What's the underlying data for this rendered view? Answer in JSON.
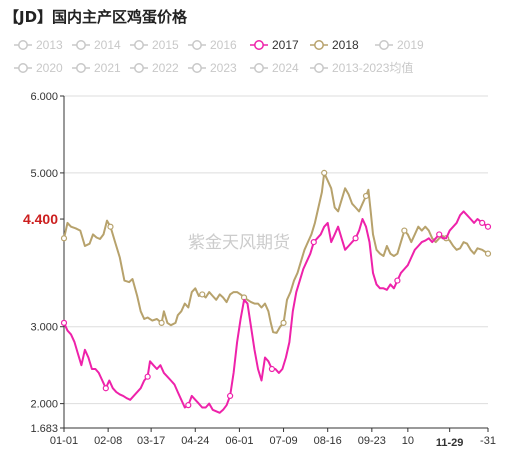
{
  "title": "【JD】国内主产区鸡蛋价格",
  "watermark": "紫金天风期货",
  "colors": {
    "active_2017": "#ee22aa",
    "active_2018": "#b7a26c",
    "inactive": "#c8c8c8",
    "highlight": "#cc1f1f",
    "grid": "#dddddd",
    "axis": "#333333"
  },
  "legend": {
    "items": [
      {
        "label": "2013",
        "color": "#c8c8c8",
        "active": false
      },
      {
        "label": "2014",
        "color": "#c8c8c8",
        "active": false
      },
      {
        "label": "2015",
        "color": "#c8c8c8",
        "active": false
      },
      {
        "label": "2016",
        "color": "#c8c8c8",
        "active": false
      },
      {
        "label": "2017",
        "color": "#ee22aa",
        "active": true
      },
      {
        "label": "2018",
        "color": "#b7a26c",
        "active": true
      },
      {
        "label": "2019",
        "color": "#c8c8c8",
        "active": false
      },
      {
        "label": "2020",
        "color": "#c8c8c8",
        "active": false
      },
      {
        "label": "2021",
        "color": "#c8c8c8",
        "active": false
      },
      {
        "label": "2022",
        "color": "#c8c8c8",
        "active": false
      },
      {
        "label": "2023",
        "color": "#c8c8c8",
        "active": false
      },
      {
        "label": "2024",
        "color": "#c8c8c8",
        "active": false
      },
      {
        "label": "2013-2023均值",
        "color": "#c8c8c8",
        "active": false
      }
    ]
  },
  "chart_data": {
    "type": "line",
    "ylim": [
      1.683,
      6.0
    ],
    "y_ticks": [
      {
        "value": 6.0,
        "label": "6.000"
      },
      {
        "value": 5.0,
        "label": "5.000"
      },
      {
        "value": 3.0,
        "label": "3.000"
      },
      {
        "value": 2.0,
        "label": "2.000"
      },
      {
        "value": 1.683,
        "label": "1.683"
      }
    ],
    "y_highlight": {
      "value": 4.4,
      "label": "4.400"
    },
    "xlim": [
      0,
      365
    ],
    "x_ticks": [
      {
        "day": 0,
        "label": "01-01"
      },
      {
        "day": 38,
        "label": "02-08"
      },
      {
        "day": 75,
        "label": "03-17"
      },
      {
        "day": 113,
        "label": "04-24"
      },
      {
        "day": 151,
        "label": "06-01"
      },
      {
        "day": 189,
        "label": "07-09"
      },
      {
        "day": 227,
        "label": "08-16"
      },
      {
        "day": 265,
        "label": "09-23"
      },
      {
        "day": 296,
        "label": "10"
      },
      {
        "day": 332,
        "label": "11-29",
        "highlight": true
      },
      {
        "day": 365,
        "label": "-31"
      }
    ],
    "series": [
      {
        "name": "2018",
        "color": "#b7a26c",
        "points": [
          [
            0,
            4.15
          ],
          [
            3,
            4.35
          ],
          [
            6,
            4.3
          ],
          [
            10,
            4.28
          ],
          [
            14,
            4.25
          ],
          [
            18,
            4.05
          ],
          [
            22,
            4.08
          ],
          [
            25,
            4.2
          ],
          [
            28,
            4.16
          ],
          [
            31,
            4.14
          ],
          [
            34,
            4.2
          ],
          [
            37,
            4.38
          ],
          [
            40,
            4.3
          ],
          [
            44,
            4.1
          ],
          [
            48,
            3.9
          ],
          [
            52,
            3.6
          ],
          [
            56,
            3.58
          ],
          [
            59,
            3.62
          ],
          [
            63,
            3.4
          ],
          [
            66,
            3.2
          ],
          [
            69,
            3.1
          ],
          [
            72,
            3.12
          ],
          [
            76,
            3.08
          ],
          [
            80,
            3.1
          ],
          [
            84,
            3.05
          ],
          [
            86,
            3.2
          ],
          [
            89,
            3.05
          ],
          [
            92,
            3.02
          ],
          [
            96,
            3.05
          ],
          [
            98,
            3.15
          ],
          [
            101,
            3.2
          ],
          [
            104,
            3.3
          ],
          [
            107,
            3.25
          ],
          [
            110,
            3.45
          ],
          [
            113,
            3.5
          ],
          [
            116,
            3.4
          ],
          [
            119,
            3.42
          ],
          [
            122,
            3.38
          ],
          [
            125,
            3.45
          ],
          [
            128,
            3.4
          ],
          [
            131,
            3.35
          ],
          [
            134,
            3.42
          ],
          [
            137,
            3.38
          ],
          [
            140,
            3.32
          ],
          [
            143,
            3.42
          ],
          [
            146,
            3.45
          ],
          [
            149,
            3.45
          ],
          [
            152,
            3.42
          ],
          [
            155,
            3.38
          ],
          [
            158,
            3.35
          ],
          [
            161,
            3.32
          ],
          [
            164,
            3.3
          ],
          [
            167,
            3.3
          ],
          [
            170,
            3.25
          ],
          [
            173,
            3.3
          ],
          [
            176,
            3.2
          ],
          [
            178,
            3.05
          ],
          [
            180,
            2.93
          ],
          [
            183,
            2.92
          ],
          [
            186,
            3.0
          ],
          [
            189,
            3.05
          ],
          [
            192,
            3.35
          ],
          [
            195,
            3.45
          ],
          [
            198,
            3.6
          ],
          [
            201,
            3.7
          ],
          [
            204,
            3.85
          ],
          [
            207,
            4.0
          ],
          [
            210,
            4.1
          ],
          [
            213,
            4.2
          ],
          [
            216,
            4.35
          ],
          [
            219,
            4.55
          ],
          [
            222,
            4.75
          ],
          [
            224,
            5.0
          ],
          [
            227,
            4.9
          ],
          [
            230,
            4.8
          ],
          [
            233,
            4.55
          ],
          [
            236,
            4.5
          ],
          [
            239,
            4.65
          ],
          [
            242,
            4.8
          ],
          [
            245,
            4.72
          ],
          [
            248,
            4.6
          ],
          [
            251,
            4.55
          ],
          [
            254,
            4.5
          ],
          [
            257,
            4.6
          ],
          [
            260,
            4.7
          ],
          [
            262,
            4.78
          ],
          [
            264,
            4.5
          ],
          [
            266,
            4.2
          ],
          [
            269,
            4.0
          ],
          [
            272,
            3.95
          ],
          [
            275,
            3.92
          ],
          [
            278,
            4.05
          ],
          [
            281,
            3.95
          ],
          [
            284,
            3.92
          ],
          [
            287,
            3.95
          ],
          [
            290,
            4.1
          ],
          [
            293,
            4.25
          ],
          [
            296,
            4.2
          ],
          [
            299,
            4.1
          ],
          [
            302,
            4.2
          ],
          [
            305,
            4.3
          ],
          [
            308,
            4.25
          ],
          [
            311,
            4.3
          ],
          [
            314,
            4.25
          ],
          [
            317,
            4.15
          ],
          [
            320,
            4.1
          ],
          [
            323,
            4.15
          ],
          [
            326,
            4.18
          ],
          [
            329,
            4.15
          ],
          [
            332,
            4.12
          ],
          [
            335,
            4.05
          ],
          [
            338,
            4.0
          ],
          [
            341,
            4.02
          ],
          [
            344,
            4.1
          ],
          [
            347,
            4.08
          ],
          [
            350,
            4.0
          ],
          [
            353,
            3.95
          ],
          [
            356,
            4.02
          ],
          [
            360,
            4.0
          ],
          [
            365,
            3.95
          ]
        ]
      },
      {
        "name": "2017",
        "color": "#ee22aa",
        "points": [
          [
            0,
            3.05
          ],
          [
            3,
            2.95
          ],
          [
            6,
            2.9
          ],
          [
            9,
            2.8
          ],
          [
            12,
            2.65
          ],
          [
            15,
            2.5
          ],
          [
            18,
            2.7
          ],
          [
            21,
            2.6
          ],
          [
            24,
            2.45
          ],
          [
            27,
            2.45
          ],
          [
            30,
            2.4
          ],
          [
            33,
            2.3
          ],
          [
            36,
            2.2
          ],
          [
            39,
            2.3
          ],
          [
            42,
            2.2
          ],
          [
            45,
            2.15
          ],
          [
            48,
            2.12
          ],
          [
            51,
            2.1
          ],
          [
            54,
            2.07
          ],
          [
            57,
            2.05
          ],
          [
            60,
            2.1
          ],
          [
            63,
            2.15
          ],
          [
            66,
            2.2
          ],
          [
            69,
            2.3
          ],
          [
            72,
            2.35
          ],
          [
            74,
            2.55
          ],
          [
            77,
            2.5
          ],
          [
            80,
            2.45
          ],
          [
            83,
            2.5
          ],
          [
            86,
            2.4
          ],
          [
            89,
            2.35
          ],
          [
            92,
            2.3
          ],
          [
            95,
            2.25
          ],
          [
            98,
            2.15
          ],
          [
            101,
            2.05
          ],
          [
            104,
            1.95
          ],
          [
            107,
            1.98
          ],
          [
            110,
            2.1
          ],
          [
            113,
            2.05
          ],
          [
            116,
            2.0
          ],
          [
            119,
            1.95
          ],
          [
            122,
            1.95
          ],
          [
            125,
            2.0
          ],
          [
            128,
            1.92
          ],
          [
            131,
            1.9
          ],
          [
            134,
            1.88
          ],
          [
            137,
            1.92
          ],
          [
            140,
            1.98
          ],
          [
            143,
            2.1
          ],
          [
            146,
            2.4
          ],
          [
            149,
            2.8
          ],
          [
            152,
            3.1
          ],
          [
            155,
            3.35
          ],
          [
            158,
            3.3
          ],
          [
            161,
            3.0
          ],
          [
            164,
            2.7
          ],
          [
            167,
            2.45
          ],
          [
            170,
            2.3
          ],
          [
            173,
            2.6
          ],
          [
            176,
            2.55
          ],
          [
            179,
            2.45
          ],
          [
            182,
            2.45
          ],
          [
            185,
            2.4
          ],
          [
            188,
            2.45
          ],
          [
            191,
            2.6
          ],
          [
            194,
            2.8
          ],
          [
            197,
            3.2
          ],
          [
            200,
            3.45
          ],
          [
            203,
            3.6
          ],
          [
            206,
            3.75
          ],
          [
            209,
            3.85
          ],
          [
            212,
            3.95
          ],
          [
            215,
            4.1
          ],
          [
            218,
            4.15
          ],
          [
            221,
            4.2
          ],
          [
            224,
            4.3
          ],
          [
            227,
            4.35
          ],
          [
            230,
            4.1
          ],
          [
            233,
            4.2
          ],
          [
            236,
            4.3
          ],
          [
            239,
            4.15
          ],
          [
            242,
            4.0
          ],
          [
            245,
            4.05
          ],
          [
            248,
            4.1
          ],
          [
            251,
            4.15
          ],
          [
            254,
            4.25
          ],
          [
            257,
            4.4
          ],
          [
            260,
            4.3
          ],
          [
            263,
            4.1
          ],
          [
            266,
            3.7
          ],
          [
            269,
            3.55
          ],
          [
            272,
            3.5
          ],
          [
            275,
            3.5
          ],
          [
            278,
            3.48
          ],
          [
            281,
            3.55
          ],
          [
            284,
            3.5
          ],
          [
            287,
            3.6
          ],
          [
            290,
            3.7
          ],
          [
            293,
            3.75
          ],
          [
            296,
            3.8
          ],
          [
            299,
            3.9
          ],
          [
            302,
            4.0
          ],
          [
            305,
            4.05
          ],
          [
            308,
            4.1
          ],
          [
            311,
            4.12
          ],
          [
            314,
            4.15
          ],
          [
            317,
            4.1
          ],
          [
            320,
            4.15
          ],
          [
            323,
            4.2
          ],
          [
            326,
            4.15
          ],
          [
            329,
            4.15
          ],
          [
            332,
            4.25
          ],
          [
            335,
            4.3
          ],
          [
            338,
            4.35
          ],
          [
            341,
            4.45
          ],
          [
            344,
            4.5
          ],
          [
            347,
            4.45
          ],
          [
            350,
            4.4
          ],
          [
            353,
            4.35
          ],
          [
            356,
            4.4
          ],
          [
            360,
            4.35
          ],
          [
            365,
            4.3
          ]
        ]
      }
    ]
  }
}
